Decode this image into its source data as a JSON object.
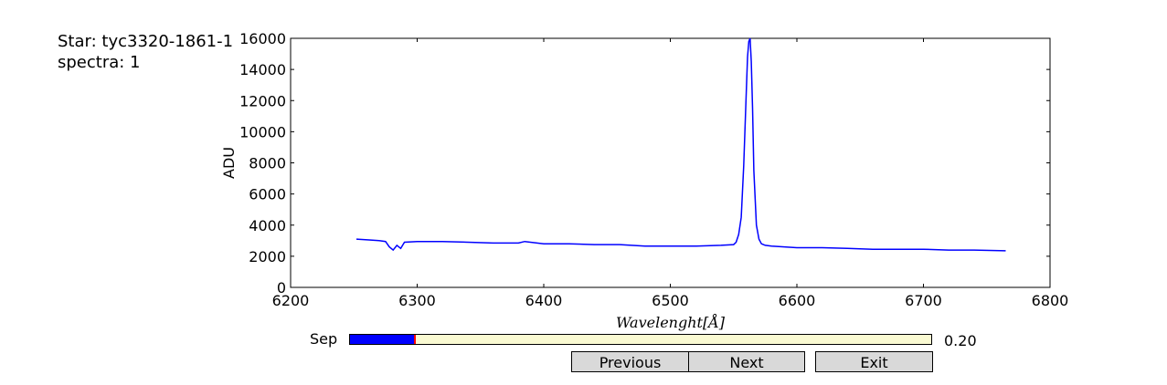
{
  "info": {
    "star_line": "Star: tyc3320-1861-1",
    "spectra_line": "spectra: 1"
  },
  "colors": {
    "line": "#0000ff",
    "slider_fill": "#0000ff",
    "slider_bg": "#fafad2",
    "slider_handle": "#ff0000",
    "button_bg": "#d9d9d9"
  },
  "chart_data": {
    "type": "line",
    "title": "",
    "xlabel": "Wavelenght[Å]",
    "ylabel": "ADU",
    "xlim": [
      6200,
      6800
    ],
    "ylim": [
      0,
      16000
    ],
    "xticks": [
      6200,
      6300,
      6400,
      6500,
      6600,
      6700,
      6800
    ],
    "yticks": [
      0,
      2000,
      4000,
      6000,
      8000,
      10000,
      12000,
      14000,
      16000
    ],
    "grid": false,
    "series": [
      {
        "name": "spectrum",
        "x": [
          6252,
          6262,
          6270,
          6275,
          6278,
          6281,
          6284,
          6287,
          6290,
          6300,
          6320,
          6340,
          6360,
          6380,
          6385,
          6400,
          6420,
          6440,
          6460,
          6480,
          6500,
          6520,
          6540,
          6550,
          6552,
          6554,
          6556,
          6558,
          6560,
          6561,
          6562,
          6563,
          6564,
          6565,
          6566,
          6568,
          6570,
          6572,
          6575,
          6580,
          6600,
          6620,
          6640,
          6660,
          6680,
          6700,
          6720,
          6740,
          6765
        ],
        "y": [
          3100,
          3050,
          3000,
          2950,
          2600,
          2400,
          2700,
          2500,
          2900,
          2950,
          2950,
          2900,
          2850,
          2850,
          2950,
          2800,
          2800,
          2750,
          2750,
          2650,
          2650,
          2650,
          2700,
          2750,
          2900,
          3400,
          4500,
          7800,
          12500,
          14800,
          15800,
          16000,
          14500,
          11500,
          7500,
          4000,
          3100,
          2800,
          2700,
          2650,
          2550,
          2550,
          2500,
          2450,
          2450,
          2450,
          2400,
          2400,
          2350
        ]
      }
    ]
  },
  "slider": {
    "label": "Sep",
    "value": 0.2,
    "value_text": "0.20",
    "min": 0,
    "max": 1.8
  },
  "buttons": {
    "previous": "Previous",
    "next": "Next",
    "exit": "Exit"
  }
}
